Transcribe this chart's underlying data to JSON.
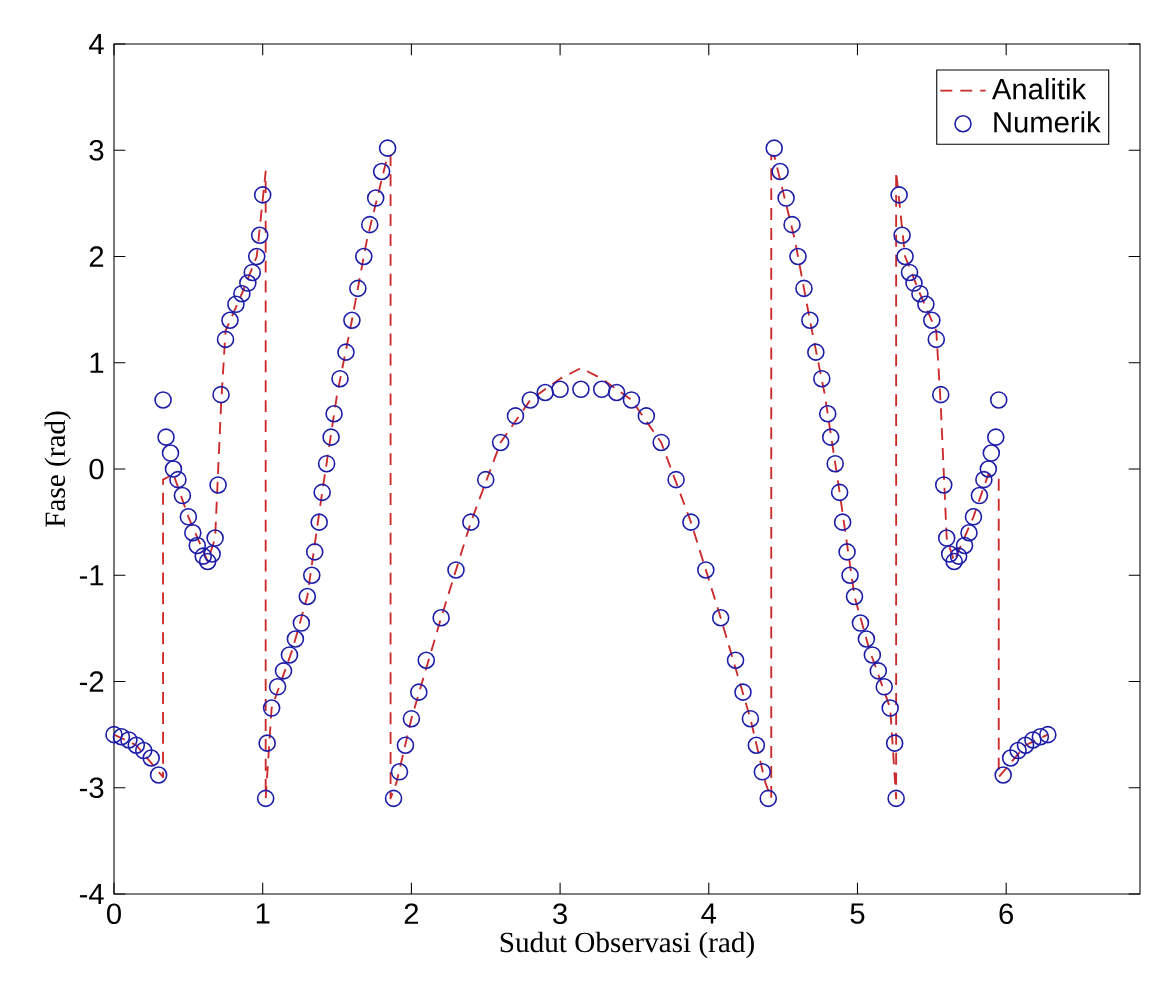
{
  "chart_data": {
    "type": "line",
    "xlabel": "Sudut Observasi (rad)",
    "ylabel": "Fase (rad)",
    "xlim": [
      0,
      6.9
    ],
    "ylim": [
      -4,
      4
    ],
    "xticks": [
      0,
      1,
      2,
      3,
      4,
      5,
      6
    ],
    "yticks": [
      -4,
      -3,
      -2,
      -1,
      0,
      1,
      2,
      3,
      4
    ],
    "grid": false,
    "legend": "top right",
    "series": [
      {
        "name": "Analitik",
        "line_style": "dashed",
        "color": "#cc2a2a",
        "x": [
          0,
          0.15,
          0.3,
          0.33,
          0.33,
          0.4,
          0.5,
          0.63,
          0.68,
          0.72,
          0.75,
          0.86,
          0.96,
          1.02,
          1.02,
          1.06,
          1.2,
          1.3,
          1.4,
          1.5,
          1.6,
          1.7,
          1.84,
          1.86,
          1.86,
          1.9,
          2.0,
          2.2,
          2.4,
          2.6,
          2.8,
          3.0,
          3.14,
          3.28,
          3.48,
          3.68,
          3.88,
          4.08,
          4.28,
          4.38,
          4.42,
          4.42,
          4.44,
          4.58,
          4.68,
          4.78,
          4.88,
          4.98,
          5.08,
          5.22,
          5.26,
          5.26,
          5.32,
          5.42,
          5.53,
          5.56,
          5.6,
          5.65,
          5.78,
          5.88,
          5.95,
          5.95,
          5.98,
          6.13,
          6.28
        ],
        "values": [
          -2.5,
          -2.6,
          -2.85,
          -2.9,
          -0.1,
          -0.05,
          -0.45,
          -0.87,
          -0.65,
          0.6,
          1.3,
          1.65,
          2.0,
          2.8,
          -3.1,
          -2.25,
          -1.7,
          -1.2,
          -0.22,
          0.7,
          1.4,
          2.15,
          2.95,
          2.95,
          -3.1,
          -2.95,
          -2.35,
          -1.4,
          -0.5,
          0.25,
          0.65,
          0.85,
          0.95,
          0.85,
          0.65,
          0.25,
          -0.5,
          -1.4,
          -2.35,
          -2.95,
          -3.1,
          2.95,
          2.95,
          2.15,
          1.4,
          0.7,
          -0.22,
          -1.2,
          -1.7,
          -2.25,
          -3.1,
          2.8,
          2.0,
          1.65,
          1.3,
          0.6,
          -0.65,
          -0.87,
          -0.45,
          -0.05,
          -0.1,
          -2.9,
          -2.85,
          -2.6,
          -2.5
        ]
      },
      {
        "name": "Numerik",
        "type": "scatter",
        "marker": "circle",
        "color": "#1c1ca8",
        "x": [
          0,
          0.05,
          0.1,
          0.15,
          0.2,
          0.25,
          0.3,
          0.33,
          0.35,
          0.38,
          0.4,
          0.43,
          0.46,
          0.5,
          0.53,
          0.56,
          0.6,
          0.63,
          0.66,
          0.68,
          0.7,
          0.72,
          0.75,
          0.78,
          0.82,
          0.86,
          0.9,
          0.93,
          0.96,
          0.98,
          1.0,
          1.02,
          1.03,
          1.06,
          1.1,
          1.14,
          1.18,
          1.22,
          1.26,
          1.3,
          1.33,
          1.35,
          1.38,
          1.4,
          1.43,
          1.46,
          1.48,
          1.52,
          1.56,
          1.6,
          1.64,
          1.68,
          1.72,
          1.76,
          1.8,
          1.84,
          1.88,
          1.92,
          1.96,
          2.0,
          2.05,
          2.1,
          2.2,
          2.3,
          2.4,
          2.5,
          2.6,
          2.7,
          2.8,
          2.9,
          3.0,
          3.14,
          3.28,
          3.38,
          3.48,
          3.58,
          3.68,
          3.78,
          3.88,
          3.98,
          4.08,
          4.18,
          4.23,
          4.28,
          4.32,
          4.36,
          4.4,
          4.44,
          4.48,
          4.52,
          4.56,
          4.6,
          4.64,
          4.68,
          4.72,
          4.76,
          4.8,
          4.82,
          4.85,
          4.88,
          4.9,
          4.93,
          4.95,
          4.98,
          5.02,
          5.06,
          5.1,
          5.14,
          5.18,
          5.22,
          5.25,
          5.26,
          5.28,
          5.3,
          5.32,
          5.35,
          5.38,
          5.42,
          5.46,
          5.5,
          5.53,
          5.56,
          5.58,
          5.6,
          5.62,
          5.65,
          5.68,
          5.72,
          5.75,
          5.78,
          5.82,
          5.85,
          5.88,
          5.9,
          5.93,
          5.95,
          5.98,
          6.03,
          6.08,
          6.13,
          6.18,
          6.23,
          6.28
        ],
        "values": [
          -2.5,
          -2.52,
          -2.55,
          -2.6,
          -2.65,
          -2.72,
          -2.88,
          0.65,
          0.3,
          0.15,
          0.0,
          -0.1,
          -0.25,
          -0.45,
          -0.6,
          -0.72,
          -0.82,
          -0.87,
          -0.8,
          -0.65,
          -0.15,
          0.7,
          1.22,
          1.4,
          1.55,
          1.65,
          1.75,
          1.85,
          2.0,
          2.2,
          2.58,
          -3.1,
          -2.58,
          -2.25,
          -2.05,
          -1.9,
          -1.75,
          -1.6,
          -1.45,
          -1.2,
          -1.0,
          -0.78,
          -0.5,
          -0.22,
          0.05,
          0.3,
          0.52,
          0.85,
          1.1,
          1.4,
          1.7,
          2.0,
          2.3,
          2.55,
          2.8,
          3.02,
          -3.1,
          -2.85,
          -2.6,
          -2.35,
          -2.1,
          -1.8,
          -1.4,
          -0.95,
          -0.5,
          -0.1,
          0.25,
          0.5,
          0.65,
          0.72,
          0.75,
          0.75,
          0.75,
          0.72,
          0.65,
          0.5,
          0.25,
          -0.1,
          -0.5,
          -0.95,
          -1.4,
          -1.8,
          -2.1,
          -2.35,
          -2.6,
          -2.85,
          -3.1,
          3.02,
          2.8,
          2.55,
          2.3,
          2.0,
          1.7,
          1.4,
          1.1,
          0.85,
          0.52,
          0.3,
          0.05,
          -0.22,
          -0.5,
          -0.78,
          -1.0,
          -1.2,
          -1.45,
          -1.6,
          -1.75,
          -1.9,
          -2.05,
          -2.25,
          -2.58,
          -3.1,
          2.58,
          2.2,
          2.0,
          1.85,
          1.75,
          1.65,
          1.55,
          1.4,
          1.22,
          0.7,
          -0.15,
          -0.65,
          -0.8,
          -0.87,
          -0.82,
          -0.72,
          -0.6,
          -0.45,
          -0.25,
          -0.1,
          0.0,
          0.15,
          0.3,
          0.65,
          -2.88,
          -2.72,
          -2.65,
          -2.6,
          -2.55,
          -2.52,
          -2.5
        ]
      }
    ]
  }
}
